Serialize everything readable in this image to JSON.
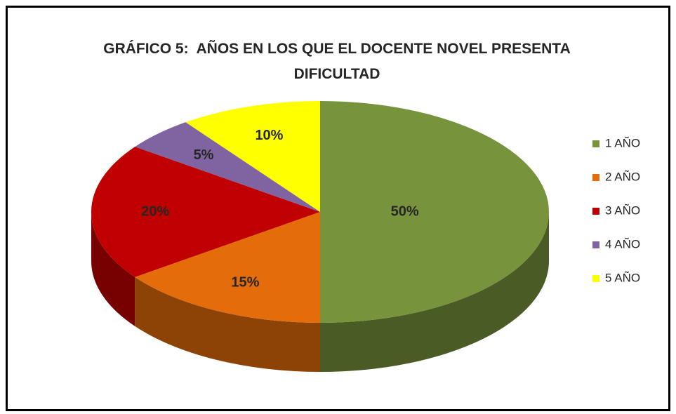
{
  "chart_data": {
    "type": "pie",
    "title": "GRÁFICO 5:  AÑOS EN LOS QUE EL DOCENTE NOVEL PRESENTA DIFICULTAD",
    "categories": [
      "1 AÑO",
      "2 AÑO",
      "3 AÑO",
      "4 AÑO",
      "5 AÑO"
    ],
    "values": [
      50,
      15,
      20,
      5,
      10
    ],
    "value_labels": [
      "50%",
      "15%",
      "20%",
      "5%",
      "10%"
    ],
    "colors": [
      "#77933c",
      "#e46c0a",
      "#c00000",
      "#8064a2",
      "#ffff00"
    ],
    "legend": "right"
  }
}
